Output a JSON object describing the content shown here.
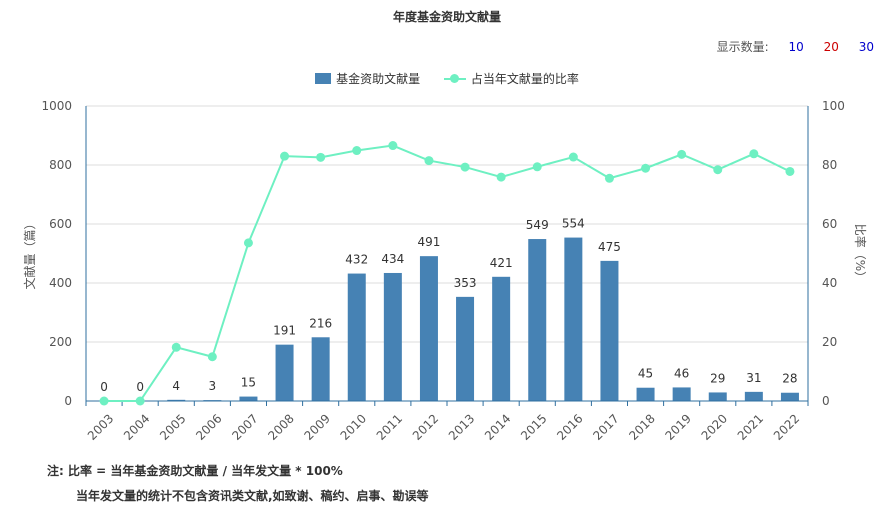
{
  "title": "年度基金资助文献量",
  "display": {
    "label": "显示数量:",
    "options": [
      "10",
      "20",
      "30"
    ],
    "colors": [
      "#0000cc",
      "#cc0000",
      "#0000cc"
    ]
  },
  "legend": {
    "bar_label": "基金资助文献量",
    "line_label": "占当年文献量的比率"
  },
  "notes": {
    "line1": "注:   比率 = 当年基金资助文献量 / 当年发文量 * 100%",
    "line2": "当年发文量的统计不包含资讯类文献,如致谢、稿约、启事、勘误等"
  },
  "chart_data": {
    "type": "bar",
    "title": "年度基金资助文献量",
    "categories": [
      "2003",
      "2004",
      "2005",
      "2006",
      "2007",
      "2008",
      "2009",
      "2010",
      "2011",
      "2012",
      "2013",
      "2014",
      "2015",
      "2016",
      "2017",
      "2018",
      "2019",
      "2020",
      "2021",
      "2022"
    ],
    "series": [
      {
        "name": "基金资助文献量",
        "type": "bar",
        "axis": "left",
        "color": "#4682b4",
        "values": [
          0,
          0,
          4,
          3,
          15,
          191,
          216,
          432,
          434,
          491,
          353,
          421,
          549,
          554,
          475,
          45,
          46,
          29,
          31,
          28
        ]
      },
      {
        "name": "占当年文献量的比率",
        "type": "line",
        "axis": "right",
        "color": "#6ef0c2",
        "values": [
          0,
          0,
          18.2,
          15,
          53.6,
          83,
          82.6,
          84.9,
          86.6,
          81.5,
          79.3,
          75.9,
          79.4,
          82.7,
          75.5,
          78.9,
          83.6,
          78.4,
          83.8,
          77.8
        ]
      }
    ],
    "ylabel": "文献量（篇）",
    "y2label": "比率（%）",
    "ylim": [
      0,
      1000
    ],
    "y2lim": [
      0,
      100
    ],
    "yticks": [
      0,
      200,
      400,
      600,
      800,
      1000
    ],
    "y2ticks": [
      0,
      20,
      40,
      60,
      80,
      100
    ],
    "grid": true,
    "legend_position": "top-center"
  }
}
